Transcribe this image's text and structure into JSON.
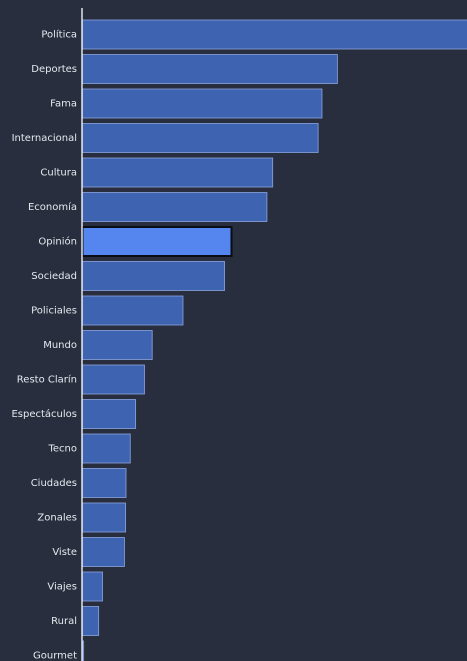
{
  "chart_data": {
    "type": "bar",
    "orientation": "horizontal",
    "title": "",
    "xlabel": "",
    "ylabel": "",
    "categories": [
      "Política",
      "Deportes",
      "Fama",
      "Internacional",
      "Cultura",
      "Economía",
      "Opinión",
      "Sociedad",
      "Policiales",
      "Mundo",
      "Resto Clarín",
      "Espectáculos",
      "Tecno",
      "Ciudades",
      "Zonales",
      "Viste",
      "Viajes",
      "Rural",
      "Gourmet"
    ],
    "values": [
      100,
      66.2,
      62.2,
      61.2,
      49.4,
      47.9,
      38.7,
      36.9,
      26.1,
      18.1,
      16.1,
      13.8,
      12.4,
      11.3,
      11.2,
      10.9,
      5.2,
      4.2,
      0.3
    ],
    "xlim": [
      0,
      100
    ],
    "highlight": "Opinión",
    "grid": false,
    "colors": {
      "background": "#282e3d",
      "bar": "#3e63b0",
      "bar_stroke": "#8ca4e0",
      "highlight": "#5586f0",
      "highlight_stroke": "#0b0d14",
      "axis": "#dfe3ea",
      "label": "#e6e9f0"
    }
  }
}
